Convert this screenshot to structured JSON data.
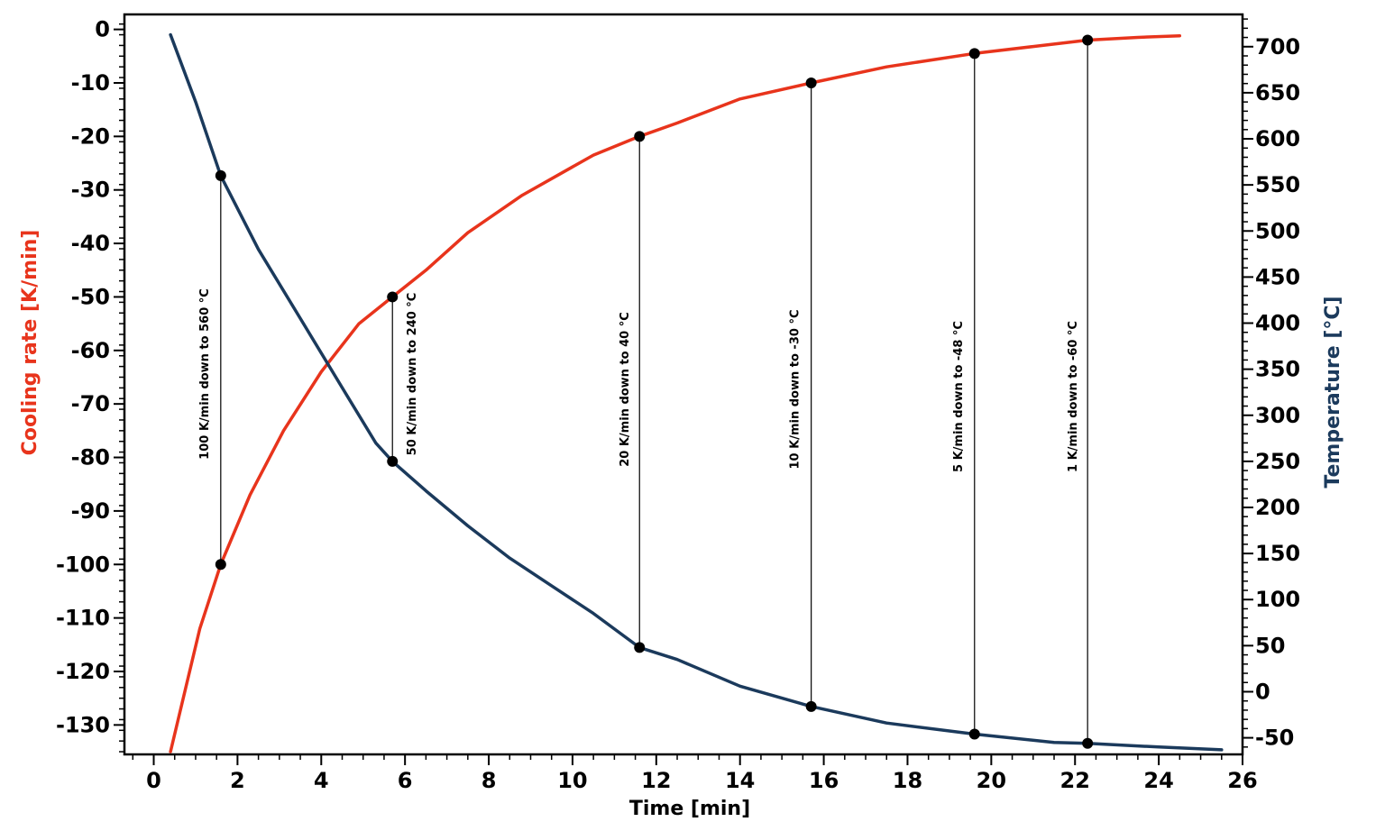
{
  "chart_data": {
    "type": "line",
    "xlabel": "Time [min]",
    "ylabel_left": "Cooling rate [K/min]",
    "ylabel_right": "Temperature [°C]",
    "xlim": [
      -0.7,
      26
    ],
    "ylim_left": [
      -135.5,
      2.8
    ],
    "ylim_right": [
      -68,
      735
    ],
    "x_ticks": [
      0,
      2,
      4,
      6,
      8,
      10,
      12,
      14,
      16,
      18,
      20,
      22,
      24,
      26
    ],
    "y_left_ticks": [
      0,
      -10,
      -20,
      -30,
      -40,
      -50,
      -60,
      -70,
      -80,
      -90,
      -100,
      -110,
      -120,
      -130
    ],
    "y_right_ticks": [
      -50,
      0,
      50,
      100,
      150,
      200,
      250,
      300,
      350,
      400,
      450,
      500,
      550,
      600,
      650,
      700
    ],
    "grid": false,
    "legend": "none",
    "colors": {
      "cooling_rate": "#e8341c",
      "temperature": "#1b3a5c",
      "markers": "#000000",
      "annotation_lines": "#000000"
    },
    "series": [
      {
        "axis": "left",
        "color": "#e8341c",
        "x": [
          0.4,
          1.1,
          1.6,
          2.3,
          3.1,
          4.0,
          4.9,
          5.7,
          6.5,
          7.5,
          8.8,
          10.5,
          11.6,
          12.5,
          14.0,
          15.7,
          17.5,
          19.6,
          21.0,
          22.3,
          23.5,
          24.5
        ],
        "y": [
          -135,
          -112,
          -100,
          -87,
          -75,
          -64,
          -55,
          -50,
          -45,
          -38,
          -31,
          -23.5,
          -20,
          -17.5,
          -13,
          -10,
          -7,
          -4.5,
          -3.2,
          -2,
          -1.5,
          -1.2
        ]
      },
      {
        "axis": "right",
        "color": "#1b3a5c",
        "x": [
          0.4,
          1.0,
          1.6,
          2.5,
          3.5,
          4.5,
          5.3,
          5.7,
          6.5,
          7.5,
          8.5,
          9.5,
          10.5,
          11.6,
          12.5,
          14.0,
          15.7,
          17.5,
          19.6,
          21.5,
          22.3,
          24.0,
          25.5
        ],
        "y": [
          713,
          640,
          560,
          480,
          405,
          330,
          270,
          250,
          218,
          180,
          145,
          115,
          85,
          48,
          35,
          6,
          -16,
          -34,
          -46,
          -55,
          -56,
          -60,
          -63
        ]
      }
    ],
    "annotations": [
      {
        "label": "100 K/min down to 560 °C",
        "x": 1.6,
        "y_temperature": 560,
        "y_cooling_rate": -100
      },
      {
        "label": "50 K/min down to 240 °C",
        "x": 5.7,
        "y_temperature": 250,
        "y_cooling_rate": -50
      },
      {
        "label": "20 K/min down to 40 °C",
        "x": 11.6,
        "y_temperature": 48,
        "y_cooling_rate": -20
      },
      {
        "label": "10 K/min down to -30 °C",
        "x": 15.7,
        "y_temperature": -16,
        "y_cooling_rate": -10
      },
      {
        "label": "5 K/min down to -48 °C",
        "x": 19.6,
        "y_temperature": -46,
        "y_cooling_rate": -4.5
      },
      {
        "label": "1 K/min down to -60 °C",
        "x": 22.3,
        "y_temperature": -56,
        "y_cooling_rate": -2
      }
    ]
  }
}
